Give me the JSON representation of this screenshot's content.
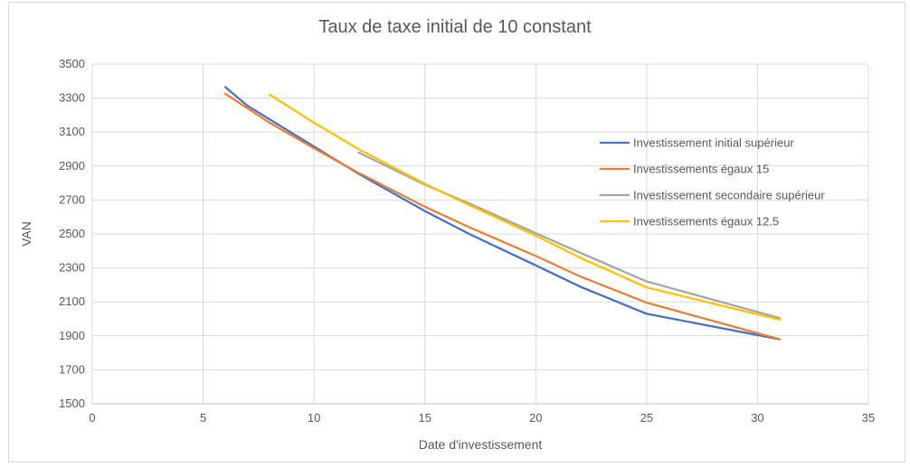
{
  "chart_data": {
    "type": "line",
    "title": "Taux de taxe initial de 10 constant",
    "xlabel": "Date d'investissement",
    "ylabel": "VAN",
    "xlim": [
      0,
      35
    ],
    "ylim": [
      1500,
      3500
    ],
    "x_ticks": [
      0,
      5,
      10,
      15,
      20,
      25,
      30,
      35
    ],
    "y_ticks": [
      1500,
      1700,
      1900,
      2100,
      2300,
      2500,
      2700,
      2900,
      3100,
      3300,
      3500
    ],
    "grid": true,
    "legend_position": "right",
    "series": [
      {
        "name": "Investissement initial supérieur",
        "color": "#4472C4",
        "points": [
          [
            6,
            3365
          ],
          [
            7,
            3255
          ],
          [
            10,
            3015
          ],
          [
            12,
            2855
          ],
          [
            15,
            2635
          ],
          [
            17,
            2500
          ],
          [
            20,
            2315
          ],
          [
            22,
            2190
          ],
          [
            25,
            2030
          ],
          [
            31,
            1880
          ]
        ]
      },
      {
        "name": "Investissements égaux 15",
        "color": "#ED7D31",
        "points": [
          [
            6,
            3325
          ],
          [
            8,
            3155
          ],
          [
            10,
            3005
          ],
          [
            12,
            2860
          ],
          [
            15,
            2660
          ],
          [
            17,
            2540
          ],
          [
            20,
            2370
          ],
          [
            22,
            2250
          ],
          [
            25,
            2095
          ],
          [
            31,
            1880
          ]
        ]
      },
      {
        "name": "Investissement secondaire supérieur",
        "color": "#A5A5A5",
        "points": [
          [
            12,
            2980
          ],
          [
            15,
            2790
          ],
          [
            17,
            2680
          ],
          [
            20,
            2505
          ],
          [
            22,
            2390
          ],
          [
            25,
            2220
          ],
          [
            31,
            2005
          ]
        ]
      },
      {
        "name": "Investissements égaux 12.5",
        "color": "#FFC000",
        "points": [
          [
            8,
            3320
          ],
          [
            10,
            3155
          ],
          [
            12,
            3000
          ],
          [
            15,
            2795
          ],
          [
            17,
            2670
          ],
          [
            20,
            2490
          ],
          [
            22,
            2360
          ],
          [
            25,
            2185
          ],
          [
            31,
            1995
          ]
        ]
      }
    ]
  }
}
